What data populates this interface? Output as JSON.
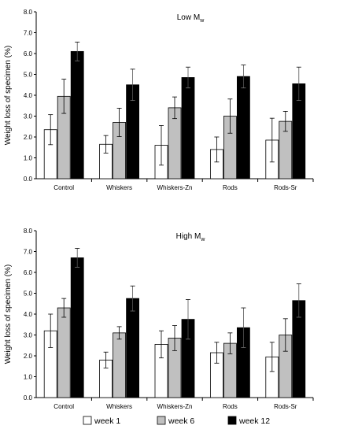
{
  "colors": {
    "week1": "#ffffff",
    "week6": "#c0c0c0",
    "week12": "#000000",
    "stroke": "#000000"
  },
  "legend": [
    {
      "label": "week 1",
      "color": "#ffffff"
    },
    {
      "label": "week 6",
      "color": "#c0c0c0"
    },
    {
      "label": "week 12",
      "color": "#000000"
    }
  ],
  "chart_data": [
    {
      "type": "bar",
      "title": "Low M",
      "title_sub": "w",
      "ylabel": "Weight loss of specimen (%)",
      "ylim": [
        0,
        8
      ],
      "yticks": [
        "0.0",
        "1.0",
        "2.0",
        "3.0",
        "4.0",
        "5.0",
        "6.0",
        "7.0",
        "8.0"
      ],
      "categories": [
        "Control",
        "Whiskers",
        "Whiskers-Zn",
        "Rods",
        "Rods-Sr"
      ],
      "series": [
        {
          "name": "week 1",
          "values": [
            2.35,
            1.65,
            1.6,
            1.4,
            1.85
          ],
          "errors": [
            0.72,
            0.42,
            0.95,
            0.6,
            1.05
          ]
        },
        {
          "name": "week 6",
          "values": [
            3.95,
            2.7,
            3.4,
            3.0,
            2.75
          ],
          "errors": [
            0.82,
            0.68,
            0.52,
            0.82,
            0.48
          ]
        },
        {
          "name": "week 12",
          "values": [
            6.1,
            4.5,
            4.85,
            4.9,
            4.55
          ],
          "errors": [
            0.45,
            0.75,
            0.5,
            0.55,
            0.8
          ]
        }
      ],
      "grid": false,
      "legend": "bottom"
    },
    {
      "type": "bar",
      "title": "High M",
      "title_sub": "w",
      "ylabel": "Weight loss of specimen (%)",
      "ylim": [
        0,
        8
      ],
      "yticks": [
        "0.0",
        "1.0",
        "2.0",
        "3.0",
        "4.0",
        "5.0",
        "6.0",
        "7.0",
        "8.0"
      ],
      "categories": [
        "Control",
        "Whiskers",
        "Whiskers-Zn",
        "Rods",
        "Rods-Sr"
      ],
      "series": [
        {
          "name": "week 1",
          "values": [
            3.2,
            1.8,
            2.55,
            2.15,
            1.95
          ],
          "errors": [
            0.8,
            0.38,
            0.65,
            0.5,
            0.7
          ]
        },
        {
          "name": "week 6",
          "values": [
            4.3,
            3.1,
            2.85,
            2.6,
            3.0
          ],
          "errors": [
            0.45,
            0.3,
            0.6,
            0.5,
            0.78
          ]
        },
        {
          "name": "week 12",
          "values": [
            6.7,
            4.75,
            3.75,
            3.35,
            4.65
          ],
          "errors": [
            0.45,
            0.6,
            0.95,
            0.95,
            0.8
          ]
        }
      ],
      "grid": false,
      "legend": "bottom"
    }
  ]
}
